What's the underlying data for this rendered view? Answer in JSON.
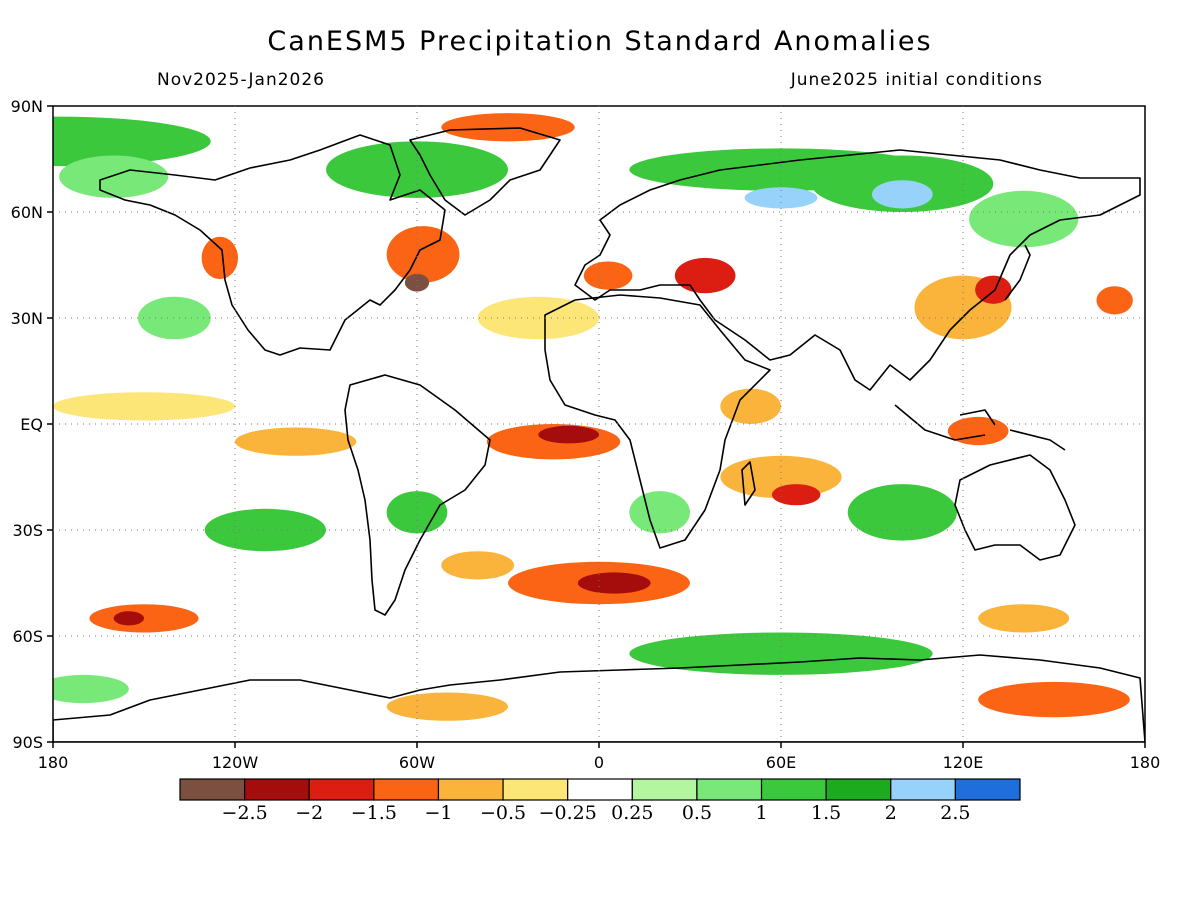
{
  "title": "CanESM5 Precipitation Standard Anomalies",
  "period": "Nov2025-Jan2026",
  "init": "June2025 initial conditions",
  "lat_labels": [
    "90N",
    "60N",
    "30N",
    "EQ",
    "30S",
    "60S",
    "90S"
  ],
  "lon_labels": [
    "180",
    "120W",
    "60W",
    "0",
    "60E",
    "120E",
    "180"
  ],
  "colorbar": {
    "colors": [
      "#7b5040",
      "#a50c0c",
      "#dc1e12",
      "#fa6414",
      "#fab43c",
      "#fde678",
      "#ffffff",
      "#b4f5a0",
      "#78e878",
      "#3cc83c",
      "#1eaa1e",
      "#96d2fa",
      "#1e6edc"
    ],
    "labels": [
      "-2.5",
      "-2",
      "-1.5",
      "-1",
      "-0.5",
      "-0.25",
      "0.25",
      "0.5",
      "1",
      "1.5",
      "2",
      "2.5"
    ]
  },
  "anomaly_regions": [
    {
      "lon": -178,
      "lat": 80,
      "rx": 50,
      "ry": 7,
      "cat": 9
    },
    {
      "lon": -60,
      "lat": 72,
      "rx": 30,
      "ry": 8,
      "cat": 9
    },
    {
      "lon": 60,
      "lat": 72,
      "rx": 50,
      "ry": 6,
      "cat": 9
    },
    {
      "lon": 100,
      "lat": 68,
      "rx": 30,
      "ry": 8,
      "cat": 9
    },
    {
      "lon": 100,
      "lat": 65,
      "rx": 10,
      "ry": 4,
      "cat": 11
    },
    {
      "lon": 60,
      "lat": 64,
      "rx": 12,
      "ry": 3,
      "cat": 11
    },
    {
      "lon": 140,
      "lat": 58,
      "rx": 18,
      "ry": 8,
      "cat": 8
    },
    {
      "lon": -160,
      "lat": 70,
      "rx": 18,
      "ry": 6,
      "cat": 8
    },
    {
      "lon": -30,
      "lat": 84,
      "rx": 22,
      "ry": 4,
      "cat": 3
    },
    {
      "lon": -58,
      "lat": 48,
      "rx": 12,
      "ry": 8,
      "cat": 3
    },
    {
      "lon": -60,
      "lat": 40,
      "rx": 4,
      "ry": 2.5,
      "cat": 0
    },
    {
      "lon": -125,
      "lat": 47,
      "rx": 6,
      "ry": 6,
      "cat": 3
    },
    {
      "lon": 35,
      "lat": 42,
      "rx": 10,
      "ry": 5,
      "cat": 2
    },
    {
      "lon": 3,
      "lat": 42,
      "rx": 8,
      "ry": 4,
      "cat": 3
    },
    {
      "lon": 120,
      "lat": 33,
      "rx": 16,
      "ry": 9,
      "cat": 4
    },
    {
      "lon": 130,
      "lat": 38,
      "rx": 6,
      "ry": 4,
      "cat": 2
    },
    {
      "lon": 170,
      "lat": 35,
      "rx": 6,
      "ry": 4,
      "cat": 3
    },
    {
      "lon": -140,
      "lat": 30,
      "rx": 12,
      "ry": 6,
      "cat": 8
    },
    {
      "lon": -20,
      "lat": 30,
      "rx": 20,
      "ry": 6,
      "cat": 5
    },
    {
      "lon": -150,
      "lat": 5,
      "rx": 30,
      "ry": 4,
      "cat": 5
    },
    {
      "lon": -100,
      "lat": -5,
      "rx": 20,
      "ry": 4,
      "cat": 4
    },
    {
      "lon": -15,
      "lat": -5,
      "rx": 22,
      "ry": 5,
      "cat": 3
    },
    {
      "lon": -10,
      "lat": -3,
      "rx": 10,
      "ry": 2.5,
      "cat": 1
    },
    {
      "lon": 60,
      "lat": -15,
      "rx": 20,
      "ry": 6,
      "cat": 4
    },
    {
      "lon": 65,
      "lat": -20,
      "rx": 8,
      "ry": 3,
      "cat": 2
    },
    {
      "lon": 50,
      "lat": 5,
      "rx": 10,
      "ry": 5,
      "cat": 4
    },
    {
      "lon": 125,
      "lat": -2,
      "rx": 10,
      "ry": 4,
      "cat": 3
    },
    {
      "lon": 100,
      "lat": -25,
      "rx": 18,
      "ry": 8,
      "cat": 9
    },
    {
      "lon": -60,
      "lat": -25,
      "rx": 10,
      "ry": 6,
      "cat": 9
    },
    {
      "lon": 20,
      "lat": -25,
      "rx": 10,
      "ry": 6,
      "cat": 8
    },
    {
      "lon": -110,
      "lat": -30,
      "rx": 20,
      "ry": 6,
      "cat": 9
    },
    {
      "lon": 0,
      "lat": -45,
      "rx": 30,
      "ry": 6,
      "cat": 3
    },
    {
      "lon": 5,
      "lat": -45,
      "rx": 12,
      "ry": 3,
      "cat": 1
    },
    {
      "lon": -40,
      "lat": -40,
      "rx": 12,
      "ry": 4,
      "cat": 4
    },
    {
      "lon": -150,
      "lat": -55,
      "rx": 18,
      "ry": 4,
      "cat": 3
    },
    {
      "lon": -155,
      "lat": -55,
      "rx": 5,
      "ry": 2,
      "cat": 1
    },
    {
      "lon": 140,
      "lat": -55,
      "rx": 15,
      "ry": 4,
      "cat": 4
    },
    {
      "lon": 60,
      "lat": -65,
      "rx": 50,
      "ry": 6,
      "cat": 9
    },
    {
      "lon": 150,
      "lat": -78,
      "rx": 25,
      "ry": 5,
      "cat": 3
    },
    {
      "lon": -50,
      "lat": -80,
      "rx": 20,
      "ry": 4,
      "cat": 4
    },
    {
      "lon": -170,
      "lat": -75,
      "rx": 15,
      "ry": 4,
      "cat": 8
    }
  ]
}
